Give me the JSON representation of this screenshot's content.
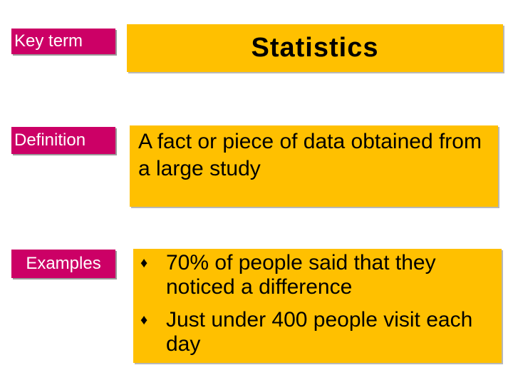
{
  "labels": {
    "key_term": "Key term",
    "definition": "Definition",
    "examples": "Examples"
  },
  "term": "Statistics",
  "definition": "A fact or piece of data obtained from a large study",
  "examples": [
    "70% of people said that they noticed a difference",
    "Just under 400 people visit each day"
  ],
  "bullet_glyph": "♦",
  "colors": {
    "label_bg": "#cc0066",
    "box_bg": "#ffc000"
  }
}
